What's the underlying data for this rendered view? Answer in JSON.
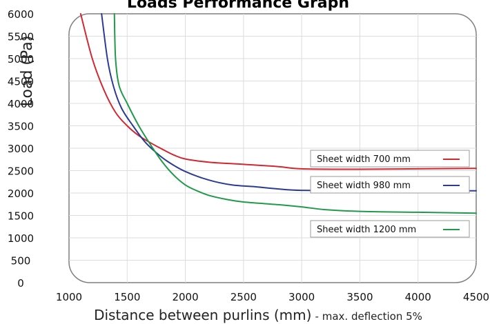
{
  "chart_data": {
    "type": "line",
    "title": "Loads Performance Graph",
    "xlabel": "Distance between purlins (mm)",
    "xlabel_note": "- max. deflection 5%",
    "ylabel": "Load (Pa)",
    "xlim": [
      1000,
      4500
    ],
    "ylim": [
      0,
      6000
    ],
    "x_ticks": [
      1000,
      1500,
      2000,
      2500,
      3000,
      3500,
      4000,
      4500
    ],
    "y_ticks": [
      0,
      500,
      1000,
      1500,
      2000,
      2500,
      3000,
      3500,
      4000,
      4500,
      5000,
      5500,
      6000
    ],
    "grid": true,
    "series": [
      {
        "name": "Sheet width 700 mm",
        "color": "#d22630",
        "points": [
          [
            1100,
            6000
          ],
          [
            1200,
            5000
          ],
          [
            1300,
            4300
          ],
          [
            1400,
            3800
          ],
          [
            1500,
            3500
          ],
          [
            1600,
            3280
          ],
          [
            1700,
            3120
          ],
          [
            1800,
            2980
          ],
          [
            1900,
            2850
          ],
          [
            2000,
            2760
          ],
          [
            2200,
            2690
          ],
          [
            2500,
            2640
          ],
          [
            2800,
            2590
          ],
          [
            3000,
            2540
          ],
          [
            3500,
            2530
          ],
          [
            4000,
            2540
          ],
          [
            4500,
            2550
          ]
        ]
      },
      {
        "name": "Sheet width 980 mm",
        "color": "#2a3b94",
        "points": [
          [
            1280,
            6000
          ],
          [
            1330,
            5000
          ],
          [
            1380,
            4400
          ],
          [
            1450,
            3900
          ],
          [
            1550,
            3500
          ],
          [
            1650,
            3150
          ],
          [
            1750,
            2900
          ],
          [
            1850,
            2700
          ],
          [
            2000,
            2480
          ],
          [
            2200,
            2290
          ],
          [
            2400,
            2180
          ],
          [
            2600,
            2140
          ],
          [
            2800,
            2090
          ],
          [
            3000,
            2060
          ],
          [
            3500,
            2050
          ],
          [
            4000,
            2050
          ],
          [
            4500,
            2050
          ]
        ]
      },
      {
        "name": "Sheet width 1200 mm",
        "color": "#1f9a48",
        "points": [
          [
            1390,
            6000
          ],
          [
            1400,
            5000
          ],
          [
            1430,
            4400
          ],
          [
            1500,
            4000
          ],
          [
            1600,
            3500
          ],
          [
            1700,
            3080
          ],
          [
            1800,
            2700
          ],
          [
            1900,
            2400
          ],
          [
            2000,
            2180
          ],
          [
            2100,
            2050
          ],
          [
            2200,
            1950
          ],
          [
            2350,
            1860
          ],
          [
            2500,
            1800
          ],
          [
            2800,
            1740
          ],
          [
            3000,
            1690
          ],
          [
            3200,
            1630
          ],
          [
            3500,
            1590
          ],
          [
            4000,
            1570
          ],
          [
            4500,
            1550
          ]
        ]
      }
    ],
    "legend_position": "right"
  }
}
